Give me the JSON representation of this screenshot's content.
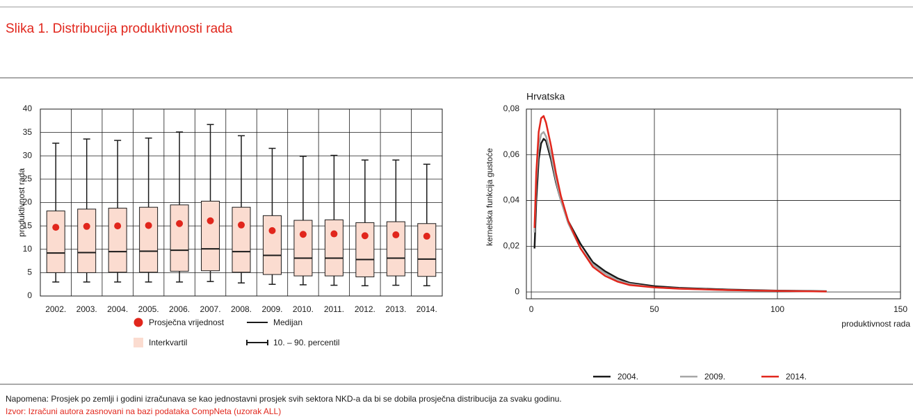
{
  "title": "Slika 1. Distribucija produktivnosti rada",
  "note": "Napomena: Prosjek po zemlji i godini izračunava se kao jednostavni prosjek svih sektora NKD-a da bi se dobila prosječna distribucija za svaku godinu.",
  "source": "Izvor: Izračuni autora zasnovani na bazi podataka CompNeta (uzorak ALL)",
  "chart_data": [
    {
      "type": "box",
      "ylabel": "produktivnost rada",
      "categories": [
        "2002.",
        "2003.",
        "2004.",
        "2005.",
        "2006.",
        "2007.",
        "2008.",
        "2009.",
        "2010.",
        "2011.",
        "2012.",
        "2013.",
        "2014."
      ],
      "ylim": [
        0,
        40
      ],
      "yticks": [
        0,
        5,
        10,
        15,
        20,
        25,
        30,
        35,
        40
      ],
      "grid": true,
      "series": [
        {
          "name": "Prosječna vrijednost",
          "color": "#e1261c",
          "values": [
            14.7,
            14.9,
            15.0,
            15.1,
            15.5,
            16.1,
            15.2,
            14.0,
            13.2,
            13.3,
            12.9,
            13.1,
            12.8
          ]
        },
        {
          "name": "Medijan",
          "color": "#1a1a1a",
          "values": [
            9.2,
            9.3,
            9.5,
            9.6,
            9.8,
            10.1,
            9.5,
            8.7,
            8.1,
            8.1,
            7.8,
            8.1,
            7.9
          ]
        },
        {
          "name": "Interkvartil",
          "color": "#fbdcd0",
          "q1": [
            5.0,
            5.0,
            5.1,
            5.1,
            5.3,
            5.4,
            5.1,
            4.6,
            4.3,
            4.3,
            4.1,
            4.3,
            4.2
          ],
          "q3": [
            18.2,
            18.6,
            18.8,
            19.0,
            19.5,
            20.3,
            19.0,
            17.2,
            16.2,
            16.3,
            15.7,
            15.9,
            15.5
          ]
        },
        {
          "name": "10. – 90. percentil",
          "color": "#1a1a1a",
          "p10": [
            3.0,
            3.0,
            3.0,
            3.0,
            3.0,
            3.1,
            2.8,
            2.5,
            2.4,
            2.3,
            2.2,
            2.3,
            2.2
          ],
          "p90": [
            32.7,
            33.6,
            33.3,
            33.8,
            35.1,
            36.7,
            34.3,
            31.6,
            29.9,
            30.1,
            29.1,
            29.1,
            28.2
          ]
        }
      ]
    },
    {
      "type": "line",
      "title": "Hrvatska",
      "xlabel": "produktivnost rada",
      "ylabel": "kernelska funkcija gustoće",
      "x": [
        1.3,
        2,
        3,
        4,
        5,
        6,
        8,
        10,
        12,
        15,
        20,
        25,
        30,
        35,
        40,
        50,
        60,
        80,
        100,
        120
      ],
      "xlim": [
        -2,
        150
      ],
      "xticks": [
        0,
        50,
        100,
        150
      ],
      "ylim": [
        -0.003,
        0.08
      ],
      "yticks": [
        0,
        {
          "value": 0.02,
          "label": "0,02"
        },
        {
          "value": 0.04,
          "label": "0,04"
        },
        {
          "value": 0.06,
          "label": "0,06"
        },
        {
          "value": 0.08,
          "label": "0,08"
        }
      ],
      "grid": true,
      "series": [
        {
          "name": "2004.",
          "color": "#1a1a1a",
          "values": [
            0.019,
            0.04,
            0.058,
            0.065,
            0.067,
            0.066,
            0.058,
            0.048,
            0.04,
            0.031,
            0.021,
            0.013,
            0.009,
            0.006,
            0.004,
            0.0025,
            0.0018,
            0.001,
            0.0006,
            0.0003
          ]
        },
        {
          "name": "2009.",
          "color": "#a6a6a6",
          "values": [
            0.026,
            0.048,
            0.064,
            0.069,
            0.07,
            0.068,
            0.06,
            0.049,
            0.04,
            0.03,
            0.019,
            0.012,
            0.008,
            0.005,
            0.0035,
            0.002,
            0.0015,
            0.0008,
            0.0005,
            0.0002
          ]
        },
        {
          "name": "2014.",
          "color": "#e1261c",
          "values": [
            0.028,
            0.052,
            0.07,
            0.076,
            0.077,
            0.074,
            0.064,
            0.052,
            0.042,
            0.031,
            0.019,
            0.011,
            0.007,
            0.0045,
            0.003,
            0.002,
            0.0014,
            0.0008,
            0.0004,
            0.0002
          ]
        }
      ]
    }
  ]
}
